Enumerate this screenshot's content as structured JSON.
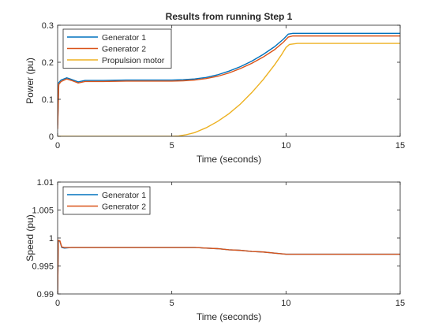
{
  "colors": {
    "gen1": "#0072BD",
    "gen2": "#D95319",
    "motor": "#EDB120",
    "axes": "#262626",
    "bg": "#ffffff"
  },
  "chart_data": [
    {
      "type": "line",
      "title": "Results from running Step 1",
      "xlabel": "Time (seconds)",
      "ylabel": "Power (pu)",
      "xlim": [
        0,
        15
      ],
      "ylim": [
        0,
        0.3
      ],
      "xticks": [
        0,
        5,
        10,
        15
      ],
      "yticks": [
        0,
        0.1,
        0.2,
        0.3
      ],
      "xtick_labels": [
        "0",
        "5",
        "10",
        "15"
      ],
      "ytick_labels": [
        "0",
        "0.1",
        "0.2",
        "0.3"
      ],
      "grid": false,
      "legend_position": "top-left",
      "series": [
        {
          "name": "Generator 1",
          "color": "#0072BD",
          "points": [
            [
              0,
              0.03
            ],
            [
              0.05,
              0.145
            ],
            [
              0.15,
              0.152
            ],
            [
              0.4,
              0.158
            ],
            [
              0.6,
              0.154
            ],
            [
              0.9,
              0.147
            ],
            [
              1.2,
              0.151
            ],
            [
              1.6,
              0.151
            ],
            [
              2,
              0.151
            ],
            [
              3,
              0.152
            ],
            [
              4,
              0.152
            ],
            [
              5,
              0.152
            ],
            [
              5.5,
              0.153
            ],
            [
              6,
              0.155
            ],
            [
              6.5,
              0.159
            ],
            [
              7,
              0.166
            ],
            [
              7.5,
              0.176
            ],
            [
              8,
              0.188
            ],
            [
              8.5,
              0.203
            ],
            [
              9,
              0.221
            ],
            [
              9.5,
              0.242
            ],
            [
              9.9,
              0.263
            ],
            [
              10.1,
              0.276
            ],
            [
              10.3,
              0.278
            ],
            [
              11,
              0.278
            ],
            [
              12,
              0.278
            ],
            [
              13,
              0.278
            ],
            [
              14,
              0.278
            ],
            [
              15,
              0.278
            ]
          ]
        },
        {
          "name": "Generator 2",
          "color": "#D95319",
          "points": [
            [
              0,
              0.02
            ],
            [
              0.05,
              0.14
            ],
            [
              0.15,
              0.148
            ],
            [
              0.4,
              0.155
            ],
            [
              0.6,
              0.151
            ],
            [
              0.9,
              0.144
            ],
            [
              1.2,
              0.148
            ],
            [
              1.6,
              0.148
            ],
            [
              2,
              0.148
            ],
            [
              3,
              0.149
            ],
            [
              4,
              0.149
            ],
            [
              5,
              0.149
            ],
            [
              5.5,
              0.15
            ],
            [
              6,
              0.152
            ],
            [
              6.5,
              0.156
            ],
            [
              7,
              0.162
            ],
            [
              7.5,
              0.171
            ],
            [
              8,
              0.183
            ],
            [
              8.5,
              0.197
            ],
            [
              9,
              0.214
            ],
            [
              9.5,
              0.234
            ],
            [
              9.9,
              0.255
            ],
            [
              10.1,
              0.268
            ],
            [
              10.3,
              0.271
            ],
            [
              11,
              0.271
            ],
            [
              12,
              0.271
            ],
            [
              13,
              0.271
            ],
            [
              14,
              0.271
            ],
            [
              15,
              0.271
            ]
          ]
        },
        {
          "name": "Propulsion motor",
          "color": "#EDB120",
          "points": [
            [
              0,
              0
            ],
            [
              1,
              0
            ],
            [
              2,
              0
            ],
            [
              3,
              0
            ],
            [
              4,
              0
            ],
            [
              5,
              0
            ],
            [
              5.3,
              0.001
            ],
            [
              5.6,
              0.004
            ],
            [
              6,
              0.01
            ],
            [
              6.5,
              0.023
            ],
            [
              7,
              0.04
            ],
            [
              7.5,
              0.061
            ],
            [
              8,
              0.087
            ],
            [
              8.5,
              0.118
            ],
            [
              9,
              0.153
            ],
            [
              9.5,
              0.193
            ],
            [
              9.8,
              0.22
            ],
            [
              10,
              0.24
            ],
            [
              10.15,
              0.248
            ],
            [
              10.5,
              0.251
            ],
            [
              11,
              0.251
            ],
            [
              12,
              0.251
            ],
            [
              13,
              0.251
            ],
            [
              14,
              0.251
            ],
            [
              15,
              0.251
            ]
          ]
        }
      ]
    },
    {
      "type": "line",
      "title": "",
      "xlabel": "Time (seconds)",
      "ylabel": "Speed (pu)",
      "xlim": [
        0,
        15
      ],
      "ylim": [
        0.99,
        1.01
      ],
      "xticks": [
        0,
        5,
        10,
        15
      ],
      "yticks": [
        0.99,
        0.995,
        1,
        1.005,
        1.01
      ],
      "xtick_labels": [
        "0",
        "5",
        "10",
        "15"
      ],
      "ytick_labels": [
        "0.99",
        "0.995",
        "1",
        "1.005",
        "1.01"
      ],
      "grid": false,
      "legend_position": "top-left",
      "series": [
        {
          "name": "Generator 1",
          "color": "#0072BD",
          "points": [
            [
              0,
              0.99
            ],
            [
              0.03,
              0.9995
            ],
            [
              0.1,
              0.9994
            ],
            [
              0.18,
              0.9983
            ],
            [
              0.3,
              0.9982
            ],
            [
              0.6,
              0.9983
            ],
            [
              1,
              0.9983
            ],
            [
              2,
              0.9983
            ],
            [
              3,
              0.9983
            ],
            [
              4,
              0.9983
            ],
            [
              5,
              0.9983
            ],
            [
              6,
              0.9983
            ],
            [
              6.5,
              0.9982
            ],
            [
              7,
              0.9981
            ],
            [
              7.5,
              0.9979
            ],
            [
              8,
              0.9978
            ],
            [
              8.5,
              0.9976
            ],
            [
              9,
              0.9975
            ],
            [
              9.5,
              0.9973
            ],
            [
              10,
              0.9971
            ],
            [
              10.2,
              0.9971
            ],
            [
              11,
              0.9971
            ],
            [
              12,
              0.9971
            ],
            [
              13,
              0.9971
            ],
            [
              14,
              0.9971
            ],
            [
              15,
              0.9971
            ]
          ]
        },
        {
          "name": "Generator 2",
          "color": "#D95319",
          "points": [
            [
              0,
              0.99
            ],
            [
              0.03,
              0.9996
            ],
            [
              0.1,
              0.9995
            ],
            [
              0.18,
              0.9984
            ],
            [
              0.3,
              0.9983
            ],
            [
              0.6,
              0.9983
            ],
            [
              1,
              0.9983
            ],
            [
              2,
              0.9983
            ],
            [
              3,
              0.9983
            ],
            [
              4,
              0.9983
            ],
            [
              5,
              0.9983
            ],
            [
              6,
              0.9983
            ],
            [
              6.5,
              0.9982
            ],
            [
              7,
              0.9981
            ],
            [
              7.5,
              0.9979
            ],
            [
              8,
              0.9978
            ],
            [
              8.5,
              0.9976
            ],
            [
              9,
              0.9975
            ],
            [
              9.5,
              0.9973
            ],
            [
              10,
              0.9971
            ],
            [
              10.2,
              0.9971
            ],
            [
              11,
              0.9971
            ],
            [
              12,
              0.9971
            ],
            [
              13,
              0.9971
            ],
            [
              14,
              0.9971
            ],
            [
              15,
              0.9971
            ]
          ]
        }
      ]
    }
  ]
}
